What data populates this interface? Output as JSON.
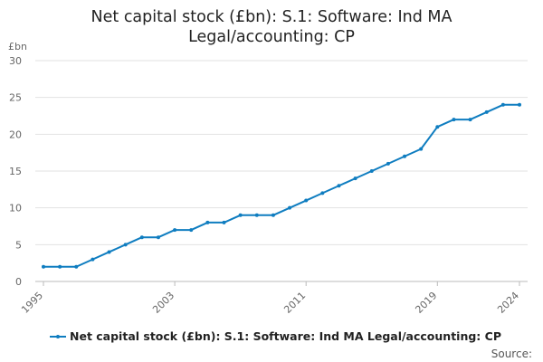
{
  "title": {
    "line1": "Net capital stock (£bn): S.1: Software: Ind MA",
    "line2": "Legal/accounting: CP"
  },
  "source_label": "Source:",
  "chart_data": {
    "type": "line",
    "title": "Net capital stock (£bn): S.1: Software: Ind MA Legal/accounting: CP",
    "ylabel": "£bn",
    "xlabel": "",
    "ylim": [
      0,
      30
    ],
    "yticks": [
      0,
      5,
      10,
      15,
      20,
      25,
      30
    ],
    "xlim": [
      1995,
      2024
    ],
    "xticks": [
      1995,
      2003,
      2011,
      2019,
      2024
    ],
    "grid": "horizontal",
    "legend_position": "bottom",
    "series": [
      {
        "name": "Net capital stock (£bn): S.1: Software: Ind MA Legal/accounting: CP",
        "color": "#0F7DC0",
        "x": [
          1995,
          1996,
          1997,
          1998,
          1999,
          2000,
          2001,
          2002,
          2003,
          2004,
          2005,
          2006,
          2007,
          2008,
          2009,
          2010,
          2011,
          2012,
          2013,
          2014,
          2015,
          2016,
          2017,
          2018,
          2019,
          2020,
          2021,
          2022,
          2023,
          2024
        ],
        "values": [
          2,
          2,
          2,
          3,
          4,
          5,
          6,
          6,
          7,
          7,
          8,
          8,
          9,
          9,
          9,
          10,
          11,
          12,
          13,
          14,
          15,
          16,
          17,
          18,
          21,
          22,
          22,
          23,
          24,
          24
        ]
      }
    ]
  }
}
